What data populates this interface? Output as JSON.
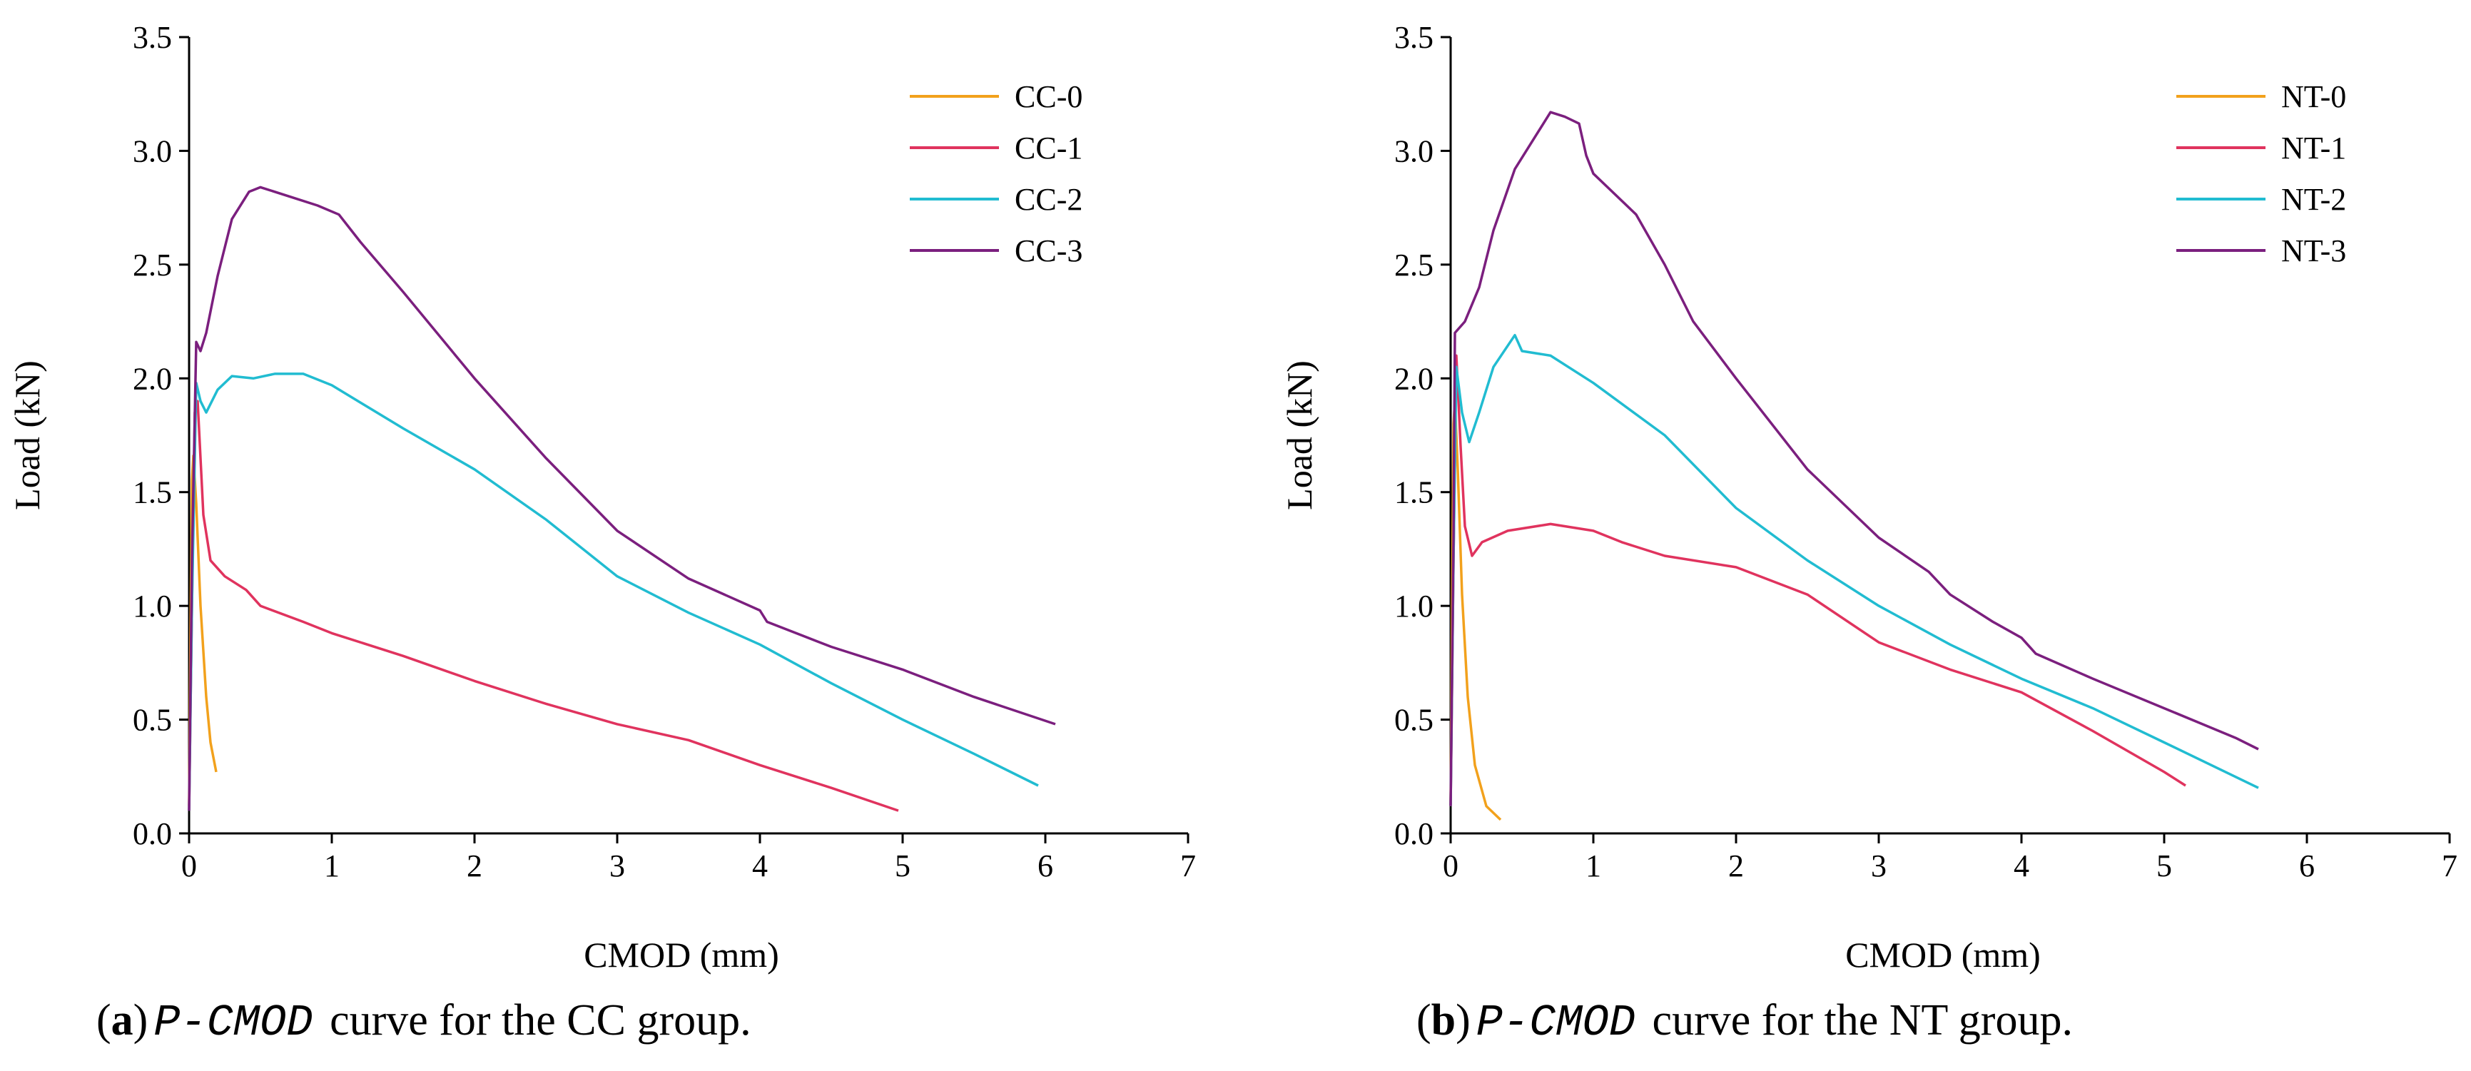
{
  "chart_data": [
    {
      "type": "line",
      "title": "",
      "xlabel": "CMOD (mm)",
      "ylabel": "Load (kN)",
      "xlim": [
        0,
        7
      ],
      "ylim": [
        0,
        3.5
      ],
      "xticks": [
        0,
        1,
        2,
        3,
        4,
        5,
        6,
        7
      ],
      "yticks": [
        "0.0",
        "0.5",
        "1.0",
        "1.5",
        "2.0",
        "2.5",
        "3.0",
        "3.5"
      ],
      "legend_position": "top-right",
      "caption": {
        "letter": "a",
        "math": "P-CMOD",
        "text": "curve for the CC group."
      },
      "series": [
        {
          "name": "CC-0",
          "color": "#f2a11c",
          "points": [
            [
              0.0,
              0.12
            ],
            [
              0.01,
              0.9
            ],
            [
              0.02,
              1.55
            ],
            [
              0.03,
              1.66
            ],
            [
              0.05,
              1.45
            ],
            [
              0.08,
              1.0
            ],
            [
              0.12,
              0.6
            ],
            [
              0.15,
              0.4
            ],
            [
              0.19,
              0.27
            ]
          ]
        },
        {
          "name": "CC-1",
          "color": "#e0335e",
          "points": [
            [
              0.0,
              0.1
            ],
            [
              0.02,
              1.0
            ],
            [
              0.04,
              1.85
            ],
            [
              0.06,
              1.9
            ],
            [
              0.1,
              1.4
            ],
            [
              0.15,
              1.2
            ],
            [
              0.25,
              1.13
            ],
            [
              0.4,
              1.07
            ],
            [
              0.5,
              1.0
            ],
            [
              0.8,
              0.93
            ],
            [
              1.0,
              0.88
            ],
            [
              1.5,
              0.78
            ],
            [
              2.0,
              0.67
            ],
            [
              2.5,
              0.57
            ],
            [
              3.0,
              0.48
            ],
            [
              3.5,
              0.41
            ],
            [
              4.0,
              0.3
            ],
            [
              4.5,
              0.2
            ],
            [
              4.97,
              0.1
            ]
          ]
        },
        {
          "name": "CC-2",
          "color": "#21bcd1",
          "points": [
            [
              0.0,
              0.1
            ],
            [
              0.02,
              1.0
            ],
            [
              0.05,
              1.98
            ],
            [
              0.08,
              1.9
            ],
            [
              0.12,
              1.85
            ],
            [
              0.2,
              1.95
            ],
            [
              0.3,
              2.01
            ],
            [
              0.45,
              2.0
            ],
            [
              0.6,
              2.02
            ],
            [
              0.8,
              2.02
            ],
            [
              1.0,
              1.97
            ],
            [
              1.5,
              1.78
            ],
            [
              2.0,
              1.6
            ],
            [
              2.5,
              1.38
            ],
            [
              3.0,
              1.13
            ],
            [
              3.5,
              0.97
            ],
            [
              4.0,
              0.83
            ],
            [
              4.5,
              0.66
            ],
            [
              5.0,
              0.5
            ],
            [
              5.5,
              0.35
            ],
            [
              5.95,
              0.21
            ]
          ]
        },
        {
          "name": "CC-3",
          "color": "#7b1f7e",
          "points": [
            [
              0.0,
              0.1
            ],
            [
              0.02,
              1.2
            ],
            [
              0.05,
              2.16
            ],
            [
              0.08,
              2.12
            ],
            [
              0.12,
              2.2
            ],
            [
              0.2,
              2.45
            ],
            [
              0.3,
              2.7
            ],
            [
              0.42,
              2.82
            ],
            [
              0.5,
              2.84
            ],
            [
              0.7,
              2.8
            ],
            [
              0.9,
              2.76
            ],
            [
              1.05,
              2.72
            ],
            [
              1.2,
              2.6
            ],
            [
              1.5,
              2.38
            ],
            [
              2.0,
              2.0
            ],
            [
              2.5,
              1.65
            ],
            [
              3.0,
              1.33
            ],
            [
              3.5,
              1.12
            ],
            [
              4.0,
              0.98
            ],
            [
              4.05,
              0.93
            ],
            [
              4.5,
              0.82
            ],
            [
              5.0,
              0.72
            ],
            [
              5.5,
              0.6
            ],
            [
              6.07,
              0.48
            ]
          ]
        }
      ]
    },
    {
      "type": "line",
      "title": "",
      "xlabel": "CMOD (mm)",
      "ylabel": "Load (kN)",
      "xlim": [
        0,
        7
      ],
      "ylim": [
        0,
        3.5
      ],
      "xticks": [
        0,
        1,
        2,
        3,
        4,
        5,
        6,
        7
      ],
      "yticks": [
        "0.0",
        "0.5",
        "1.0",
        "1.5",
        "2.0",
        "2.5",
        "3.0",
        "3.5"
      ],
      "legend_position": "top-right",
      "caption": {
        "letter": "b",
        "math": "P-CMOD",
        "text": "curve for the NT group."
      },
      "series": [
        {
          "name": "NT-0",
          "color": "#f2a11c",
          "points": [
            [
              0.0,
              0.12
            ],
            [
              0.01,
              1.0
            ],
            [
              0.02,
              1.8
            ],
            [
              0.03,
              1.9
            ],
            [
              0.05,
              1.6
            ],
            [
              0.08,
              1.05
            ],
            [
              0.12,
              0.6
            ],
            [
              0.17,
              0.3
            ],
            [
              0.25,
              0.12
            ],
            [
              0.35,
              0.06
            ]
          ]
        },
        {
          "name": "NT-1",
          "color": "#e0335e",
          "points": [
            [
              0.0,
              0.12
            ],
            [
              0.02,
              1.2
            ],
            [
              0.04,
              2.1
            ],
            [
              0.07,
              1.7
            ],
            [
              0.1,
              1.35
            ],
            [
              0.15,
              1.22
            ],
            [
              0.22,
              1.28
            ],
            [
              0.4,
              1.33
            ],
            [
              0.7,
              1.36
            ],
            [
              1.0,
              1.33
            ],
            [
              1.2,
              1.28
            ],
            [
              1.5,
              1.22
            ],
            [
              2.0,
              1.17
            ],
            [
              2.5,
              1.05
            ],
            [
              3.0,
              0.84
            ],
            [
              3.5,
              0.72
            ],
            [
              4.0,
              0.62
            ],
            [
              4.5,
              0.45
            ],
            [
              5.0,
              0.27
            ],
            [
              5.15,
              0.21
            ]
          ]
        },
        {
          "name": "NT-2",
          "color": "#21bcd1",
          "points": [
            [
              0.0,
              0.12
            ],
            [
              0.02,
              1.2
            ],
            [
              0.04,
              2.05
            ],
            [
              0.08,
              1.85
            ],
            [
              0.13,
              1.72
            ],
            [
              0.2,
              1.85
            ],
            [
              0.3,
              2.05
            ],
            [
              0.45,
              2.19
            ],
            [
              0.5,
              2.12
            ],
            [
              0.7,
              2.1
            ],
            [
              1.0,
              1.98
            ],
            [
              1.5,
              1.75
            ],
            [
              2.0,
              1.43
            ],
            [
              2.5,
              1.2
            ],
            [
              3.0,
              1.0
            ],
            [
              3.5,
              0.83
            ],
            [
              4.0,
              0.68
            ],
            [
              4.5,
              0.55
            ],
            [
              5.0,
              0.4
            ],
            [
              5.66,
              0.2
            ]
          ]
        },
        {
          "name": "NT-3",
          "color": "#7b1f7e",
          "points": [
            [
              0.0,
              0.12
            ],
            [
              0.02,
              1.3
            ],
            [
              0.03,
              2.2
            ],
            [
              0.1,
              2.25
            ],
            [
              0.2,
              2.4
            ],
            [
              0.3,
              2.65
            ],
            [
              0.45,
              2.92
            ],
            [
              0.6,
              3.07
            ],
            [
              0.7,
              3.17
            ],
            [
              0.8,
              3.15
            ],
            [
              0.9,
              3.12
            ],
            [
              0.95,
              2.98
            ],
            [
              1.0,
              2.9
            ],
            [
              1.3,
              2.72
            ],
            [
              1.5,
              2.5
            ],
            [
              1.7,
              2.25
            ],
            [
              2.0,
              2.0
            ],
            [
              2.5,
              1.6
            ],
            [
              3.0,
              1.3
            ],
            [
              3.35,
              1.15
            ],
            [
              3.5,
              1.05
            ],
            [
              3.8,
              0.93
            ],
            [
              4.0,
              0.86
            ],
            [
              4.1,
              0.79
            ],
            [
              4.5,
              0.68
            ],
            [
              5.0,
              0.55
            ],
            [
              5.5,
              0.42
            ],
            [
              5.66,
              0.37
            ]
          ]
        }
      ]
    }
  ]
}
